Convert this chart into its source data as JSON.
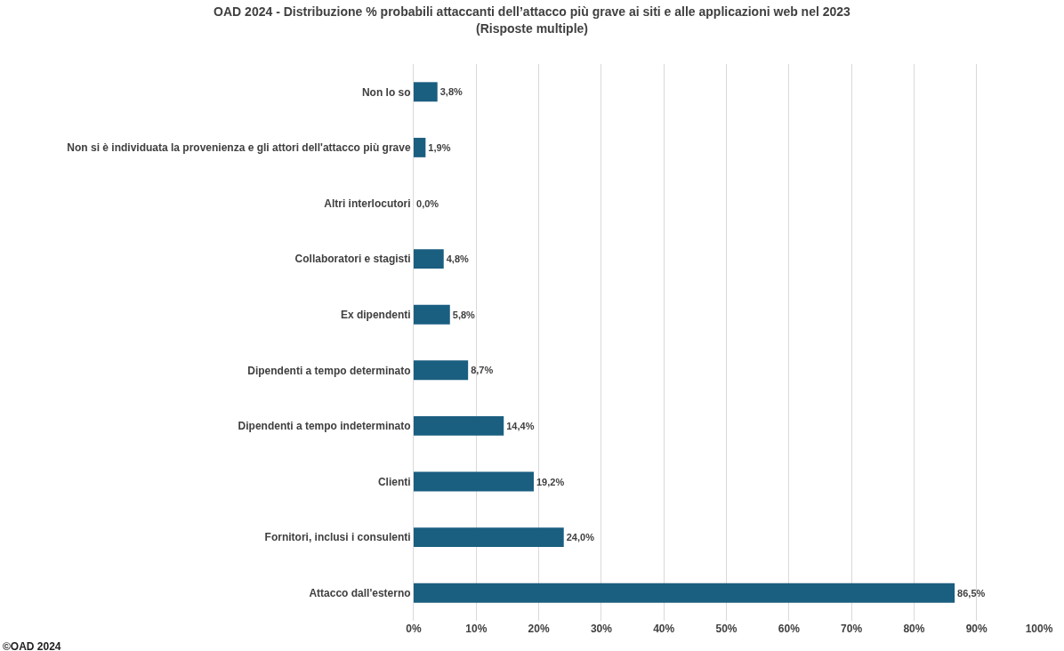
{
  "chart_data": {
    "type": "bar",
    "orientation": "horizontal",
    "title": "OAD 2024 - Distribuzione % probabili attaccanti dell’attacco più grave ai siti e alle applicazioni web nel 2023\n(Risposte multiple)",
    "categories": [
      "Non lo so",
      "Non si è individuata la provenienza e gli attori dell'attacco più grave",
      "Altri interlocutori",
      "Collaboratori e stagisti",
      "Ex dipendenti",
      "Dipendenti a tempo determinato",
      "Dipendenti a tempo indeterminato",
      "Clienti",
      "Fornitori, inclusi i consulenti",
      "Attacco dall'esterno"
    ],
    "values": [
      3.8,
      1.9,
      0.0,
      4.8,
      5.8,
      8.7,
      14.4,
      19.2,
      24.0,
      86.5
    ],
    "value_labels": [
      "3,8%",
      "1,9%",
      "0,0%",
      "4,8%",
      "5,8%",
      "8,7%",
      "14,4%",
      "19,2%",
      "24,0%",
      "86,5%"
    ],
    "color": "#1a5e80",
    "xlim": [
      0,
      100
    ],
    "xticks": [
      {
        "value": 0,
        "label": "0%"
      },
      {
        "value": 10,
        "label": "10%"
      },
      {
        "value": 20,
        "label": "20%"
      },
      {
        "value": 30,
        "label": "30%"
      },
      {
        "value": 40,
        "label": "40%"
      },
      {
        "value": 50,
        "label": "50%"
      },
      {
        "value": 60,
        "label": "60%"
      },
      {
        "value": 70,
        "label": "70%"
      },
      {
        "value": 80,
        "label": "80%"
      },
      {
        "value": 90,
        "label": "90%"
      },
      {
        "value": 100,
        "label": "100%"
      }
    ],
    "grid": "x",
    "annotations": [
      "©OAD 2024"
    ]
  }
}
